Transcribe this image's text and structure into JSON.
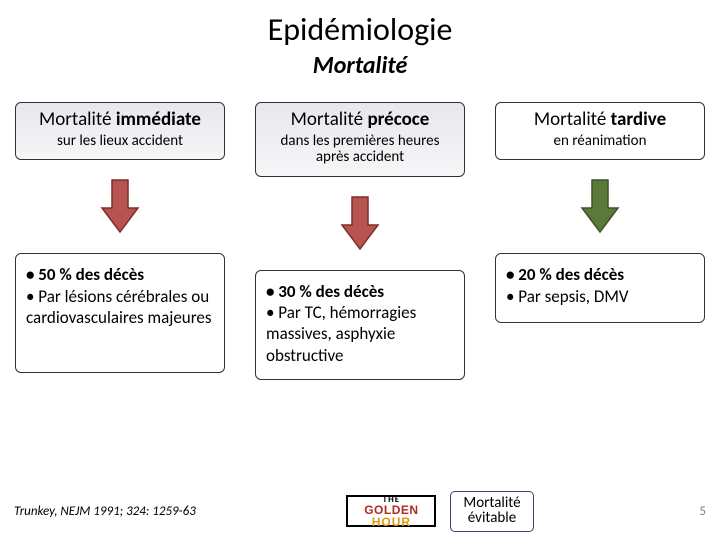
{
  "title": "Epidémiologie",
  "subtitle": "Mortalité",
  "columns": [
    {
      "header_title_plain": "Mortalité ",
      "header_title_bold": "immédiate",
      "header_sub": "sur les lieux accident",
      "header_bg": "gradient",
      "arrow_fill": "#b85450",
      "arrow_stroke": "#7a2e2a",
      "detail_min_height": 120,
      "bullets": [
        {
          "bold": "• 50 % des décès",
          "rest": ""
        },
        {
          "bold": "",
          "rest": "• Par lésions cérébrales ou cardiovasculaires majeures"
        }
      ]
    },
    {
      "header_title_plain": "Mortalité ",
      "header_title_bold": "précoce",
      "header_sub": "dans les premières heures après accident",
      "header_bg": "gradient",
      "arrow_fill": "#b85450",
      "arrow_stroke": "#7a2e2a",
      "detail_min_height": 110,
      "bullets": [
        {
          "bold": "• 30 % des décès",
          "rest": ""
        },
        {
          "bold": "",
          "rest": "• Par TC, hémorragies massives, asphyxie obstructive"
        }
      ]
    },
    {
      "header_title_plain": "Mortalité ",
      "header_title_bold": "tardive",
      "header_sub": "en réanimation",
      "header_bg": "plain",
      "arrow_fill": "#5a7a3a",
      "arrow_stroke": "#3d5226",
      "detail_min_height": 70,
      "bullets": [
        {
          "bold": "• 20 % des décès",
          "rest": ""
        },
        {
          "bold": "",
          "rest": "• Par sepsis, DMV"
        }
      ]
    }
  ],
  "citation": "Trunkey, NEJM 1991; 324: 1259-63",
  "golden_logo": {
    "line1": "THE",
    "line2": "GOLDEN",
    "line3": "HOUR"
  },
  "evitable": {
    "line1": "Mortalité",
    "line2": "évitable"
  },
  "page_number": "5",
  "colors": {
    "background": "#ffffff",
    "box_border": "#333333",
    "evitable_border": "#3f3f7a"
  }
}
